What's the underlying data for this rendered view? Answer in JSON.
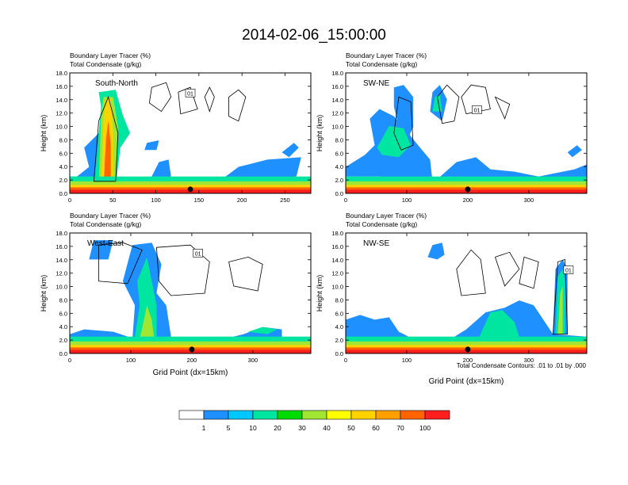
{
  "figure": {
    "title": "2014-02-06_15:00:00",
    "footnote": "Total Condensate Contours: .01 to .01 by .000"
  },
  "chart_data": [
    {
      "type": "heatmap",
      "name": "South-North",
      "label": "South-North",
      "subtitle1": "Boundary Layer Tracer   (%)",
      "subtitle2": "Total Condensate   (g/kg)",
      "ylabel": "Height (km)",
      "xlabel": "",
      "xlim": [
        0,
        280
      ],
      "xticks": [
        0,
        50,
        100,
        150,
        200,
        250
      ],
      "ylim": [
        0,
        18
      ],
      "yticks": [
        "0.0",
        "2.0",
        "4.0",
        "6.0",
        "8.0",
        "10.0",
        "12.0",
        "14.0",
        "16.0",
        "18.0"
      ],
      "contour_label": "01",
      "contour_label_pos": [
        140,
        15
      ]
    },
    {
      "type": "heatmap",
      "name": "SW-NE",
      "label": "SW-NE",
      "subtitle1": "Boundary Layer Tracer   (%)",
      "subtitle2": "Total Condensate   (g/kg)",
      "ylabel": "Height (km)",
      "xlabel": "",
      "xlim": [
        0,
        395
      ],
      "xticks": [
        0,
        100,
        200,
        300
      ],
      "ylim": [
        0,
        18
      ],
      "yticks": [
        "0.0",
        "2.0",
        "4.0",
        "6.0",
        "8.0",
        "10.0",
        "12.0",
        "14.0",
        "16.0",
        "18.0"
      ],
      "contour_label": "01",
      "contour_label_pos": [
        215,
        12.5
      ]
    },
    {
      "type": "heatmap",
      "name": "West-East",
      "label": "West-East",
      "subtitle1": "Boundary Layer Tracer   (%)",
      "subtitle2": "Total Condensate   (g/kg)",
      "ylabel": "Height (km)",
      "xlabel": "Grid Point (dx=15km)",
      "xlim": [
        0,
        395
      ],
      "xticks": [
        0,
        100,
        200,
        300
      ],
      "ylim": [
        0,
        18
      ],
      "yticks": [
        "0.0",
        "2.0",
        "4.0",
        "6.0",
        "8.0",
        "10.0",
        "12.0",
        "14.0",
        "16.0",
        "18.0"
      ],
      "contour_label": "01",
      "contour_label_pos": [
        210,
        15
      ]
    },
    {
      "type": "heatmap",
      "name": "NW-SE",
      "label": "NW-SE",
      "subtitle1": "Boundary Layer Tracer   (%)",
      "subtitle2": "Total Condensate   (g/kg)",
      "ylabel": "Height (km)",
      "xlabel": "Grid Point (dx=15km)",
      "xlim": [
        0,
        395
      ],
      "xticks": [
        0,
        100,
        200,
        300
      ],
      "ylim": [
        0,
        18
      ],
      "yticks": [
        "0.0",
        "2.0",
        "4.0",
        "6.0",
        "8.0",
        "10.0",
        "12.0",
        "14.0",
        "16.0",
        "18.0"
      ],
      "contour_label": "01",
      "contour_label_pos": [
        365,
        12.5
      ]
    }
  ],
  "colorbar": {
    "levels": [
      "1",
      "5",
      "10",
      "20",
      "30",
      "40",
      "50",
      "60",
      "70",
      "100"
    ],
    "colors": [
      "#ffffff",
      "#1e90ff",
      "#00c8ff",
      "#00e6a0",
      "#00dc00",
      "#a0e632",
      "#ffff00",
      "#ffd200",
      "#ffa000",
      "#ff6400",
      "#ff1e1e"
    ]
  }
}
